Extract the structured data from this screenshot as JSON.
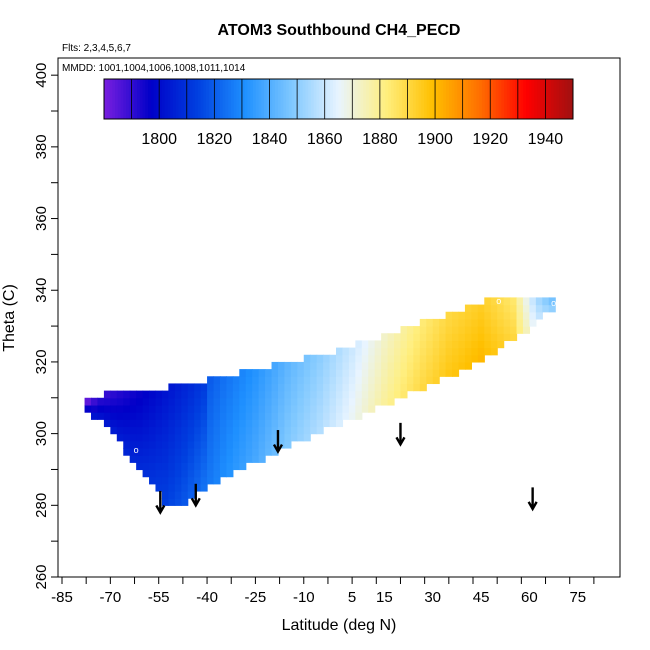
{
  "chart_data": {
    "type": "heatmap",
    "title": "ATOM3 Southbound CH4_PECD",
    "flights_label": "Flts: 2,3,4,5,6,7",
    "dates_label": "MMDD: 1001,1004,1006,1008,1011,1014",
    "xlabel": "Latitude (deg N)",
    "ylabel": "Theta (C)",
    "xlim": [
      -85,
      85
    ],
    "ylim": [
      260,
      402
    ],
    "x_ticks": [
      -85,
      -70,
      -55,
      -40,
      -25,
      -10,
      5,
      15,
      30,
      45,
      60,
      75
    ],
    "y_ticks": [
      260,
      280,
      300,
      320,
      340,
      360,
      380,
      400
    ],
    "colorbar": {
      "range": [
        1780,
        1950
      ],
      "ticks": [
        1800,
        1820,
        1840,
        1860,
        1880,
        1900,
        1920,
        1940
      ],
      "colors": [
        "#7a1fe0",
        "#0000c8",
        "#0040e0",
        "#1e90ff",
        "#7fc8ff",
        "#e8f4ff",
        "#ffef80",
        "#ffc000",
        "#ff7000",
        "#ff0000",
        "#a01010"
      ]
    },
    "field": {
      "latitude_range": [
        -78,
        68
      ],
      "theta_bottom_by_latitude": [
        [
          -78,
          308
        ],
        [
          -70,
          302
        ],
        [
          -62,
          292
        ],
        [
          -55,
          284
        ],
        [
          -53,
          280
        ],
        [
          -48,
          280
        ],
        [
          -45,
          283
        ],
        [
          -38,
          287
        ],
        [
          -30,
          291
        ],
        [
          -22,
          294
        ],
        [
          -14,
          298
        ],
        [
          -6,
          301
        ],
        [
          2,
          304
        ],
        [
          10,
          307
        ],
        [
          18,
          310
        ],
        [
          28,
          314
        ],
        [
          38,
          318
        ],
        [
          48,
          323
        ],
        [
          58,
          329
        ],
        [
          64,
          334
        ],
        [
          68,
          336
        ]
      ],
      "theta_top_by_latitude": [
        [
          -78,
          309
        ],
        [
          -72,
          310
        ],
        [
          -62,
          311
        ],
        [
          -52,
          312
        ],
        [
          -40,
          314
        ],
        [
          -30,
          316
        ],
        [
          -20,
          318
        ],
        [
          -10,
          320
        ],
        [
          0,
          322
        ],
        [
          10,
          325
        ],
        [
          20,
          328
        ],
        [
          30,
          331
        ],
        [
          40,
          334
        ],
        [
          50,
          337
        ],
        [
          60,
          338
        ],
        [
          68,
          338
        ]
      ],
      "ch4_by_latitude": [
        [
          -78,
          1785
        ],
        [
          -74,
          1800
        ],
        [
          -60,
          1808
        ],
        [
          -45,
          1820
        ],
        [
          -35,
          1830
        ],
        [
          -25,
          1838
        ],
        [
          -15,
          1848
        ],
        [
          -5,
          1856
        ],
        [
          5,
          1866
        ],
        [
          15,
          1878
        ],
        [
          25,
          1888
        ],
        [
          35,
          1896
        ],
        [
          45,
          1900
        ],
        [
          55,
          1890
        ],
        [
          62,
          1860
        ],
        [
          68,
          1845
        ]
      ]
    },
    "markers": [
      {
        "lat": -79.5,
        "theta": 309,
        "label": "o"
      },
      {
        "lat": -62,
        "theta": 295.5,
        "label": "o"
      },
      {
        "lat": -50,
        "theta": 278.5,
        "label": "i"
      },
      {
        "lat": 50.5,
        "theta": 337,
        "label": "o"
      },
      {
        "lat": 67.5,
        "theta": 336.5,
        "label": "o"
      }
    ],
    "arrows": [
      {
        "lat": -54.5,
        "theta": 284,
        "length": 6
      },
      {
        "lat": -43.5,
        "theta": 286,
        "length": 6
      },
      {
        "lat": -18,
        "theta": 301,
        "length": 6
      },
      {
        "lat": 20,
        "theta": 303,
        "length": 6
      },
      {
        "lat": 61,
        "theta": 285,
        "length": 6
      }
    ]
  }
}
